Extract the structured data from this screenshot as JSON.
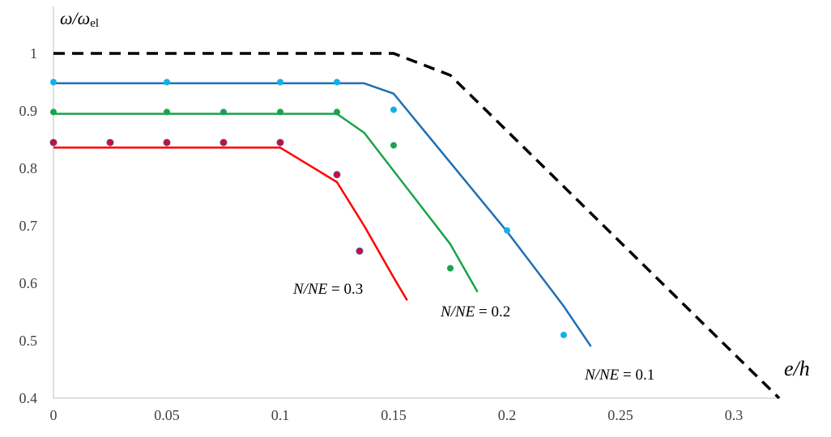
{
  "chart_data": {
    "type": "line",
    "xlabel": "e/h",
    "ylabel_main": "ω/ω",
    "ylabel_sub": "el",
    "xlim": [
      0,
      0.32
    ],
    "ylim": [
      0.4,
      1.05
    ],
    "x_ticks": [
      "0",
      "0.05",
      "0.1",
      "0.15",
      "0.2",
      "0.25",
      "0.3"
    ],
    "x_tick_values": [
      0,
      0.05,
      0.1,
      0.15,
      0.2,
      0.25,
      0.3
    ],
    "y_ticks": [
      "0.4",
      "0.5",
      "0.6",
      "0.7",
      "0.8",
      "0.9",
      "1"
    ],
    "y_tick_values": [
      0.4,
      0.5,
      0.6,
      0.7,
      0.8,
      0.9,
      1.0
    ],
    "grid": false,
    "series": [
      {
        "key": "elastic",
        "style": "dashed",
        "color": "#000000",
        "line": [
          [
            0,
            1.0
          ],
          [
            0.15,
            1.0
          ],
          [
            0.175,
            0.962
          ],
          [
            0.32,
            0.4
          ]
        ],
        "points": []
      },
      {
        "key": "n01",
        "label_italic": "N/NE",
        "label_value": "= 0.1",
        "color": "#1F6FB5",
        "point_color": "#13B0E8",
        "line": [
          [
            0,
            0.948
          ],
          [
            0.137,
            0.948
          ],
          [
            0.15,
            0.93
          ],
          [
            0.2,
            0.69
          ],
          [
            0.225,
            0.56
          ],
          [
            0.237,
            0.49
          ]
        ],
        "points": [
          [
            0,
            0.95
          ],
          [
            0.05,
            0.95
          ],
          [
            0.1,
            0.95
          ],
          [
            0.125,
            0.95
          ],
          [
            0.15,
            0.902
          ],
          [
            0.2,
            0.692
          ],
          [
            0.225,
            0.51
          ]
        ]
      },
      {
        "key": "n02",
        "label_italic": "N/NE",
        "label_value": "= 0.2",
        "color": "#1AA34A",
        "point_color": "#1AA34A",
        "line": [
          [
            0,
            0.895
          ],
          [
            0.125,
            0.895
          ],
          [
            0.137,
            0.862
          ],
          [
            0.175,
            0.668
          ],
          [
            0.187,
            0.585
          ]
        ],
        "points": [
          [
            0,
            0.898
          ],
          [
            0.05,
            0.898
          ],
          [
            0.075,
            0.898
          ],
          [
            0.1,
            0.898
          ],
          [
            0.125,
            0.898
          ],
          [
            0.15,
            0.84
          ],
          [
            0.175,
            0.626
          ]
        ]
      },
      {
        "key": "n03",
        "label_italic": "N/NE",
        "label_value": "= 0.3",
        "color": "#FF0000",
        "point_color": "#C8102E",
        "point_stroke": "#5B4DB3",
        "line": [
          [
            0,
            0.836
          ],
          [
            0.1,
            0.836
          ],
          [
            0.125,
            0.776
          ],
          [
            0.137,
            0.7
          ],
          [
            0.15,
            0.61
          ],
          [
            0.156,
            0.57
          ]
        ],
        "points": [
          [
            0,
            0.845
          ],
          [
            0.025,
            0.845
          ],
          [
            0.05,
            0.845
          ],
          [
            0.075,
            0.845
          ],
          [
            0.1,
            0.845
          ],
          [
            0.125,
            0.789
          ],
          [
            0.135,
            0.656
          ]
        ]
      }
    ]
  }
}
